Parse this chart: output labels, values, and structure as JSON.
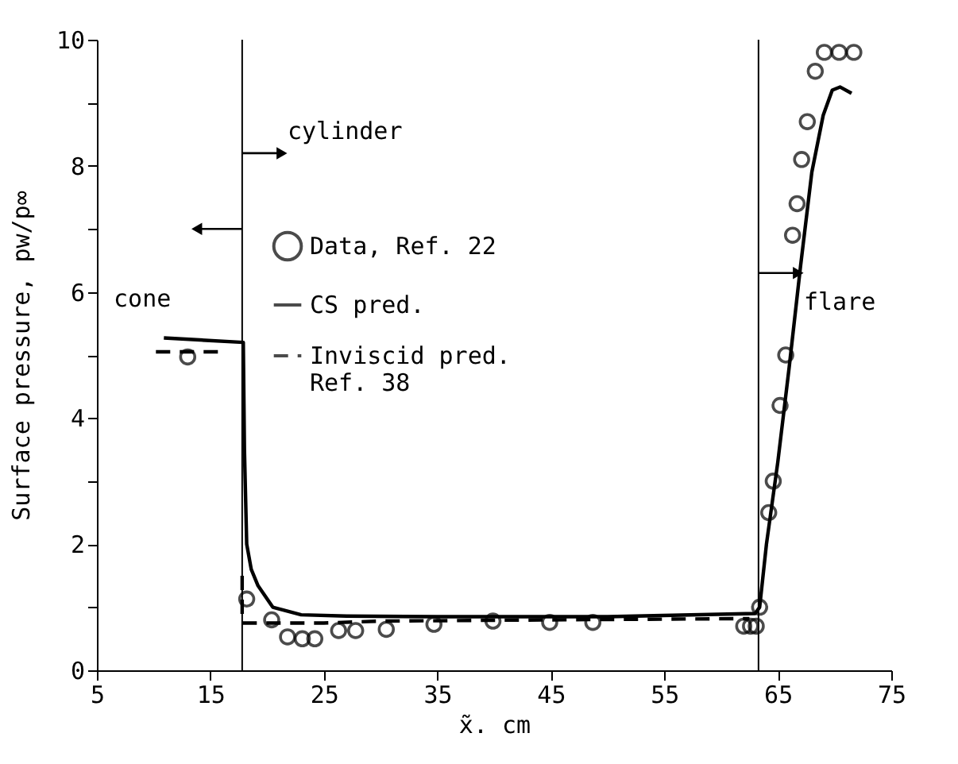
{
  "chart_data": {
    "type": "line",
    "xlabel": "x̃. cm",
    "ylabel": "Surface pressure, pw/p∞",
    "xlim": [
      5,
      75
    ],
    "xticks": [
      5,
      15,
      25,
      35,
      45,
      55,
      65,
      75
    ],
    "ylim": [
      0,
      10
    ],
    "yticks": [
      0,
      {
        "value": 1,
        "label": null
      },
      2,
      {
        "value": 3,
        "label": null
      },
      4,
      {
        "value": 5,
        "label": null
      },
      6,
      {
        "value": 7,
        "label": null
      },
      8,
      {
        "value": 9,
        "label": null
      },
      10
    ],
    "grid": false,
    "legend": "left",
    "series": [
      {
        "name": "Data, Ref. 22",
        "type": "scatter",
        "marker": "circle",
        "color": "#000000",
        "x": [
          13.0,
          18.2,
          20.4,
          21.8,
          23.1,
          24.2,
          26.3,
          27.8,
          30.5,
          34.7,
          39.9,
          44.9,
          48.7,
          62.0,
          62.6,
          63.1,
          63.4,
          64.2,
          64.6,
          65.2,
          65.7,
          66.3,
          66.7,
          67.1,
          67.6,
          68.3,
          69.1,
          70.4,
          71.7
        ],
        "values": [
          4.97,
          1.13,
          0.8,
          0.53,
          0.5,
          0.5,
          0.63,
          0.63,
          0.65,
          0.73,
          0.78,
          0.76,
          0.76,
          0.7,
          0.7,
          0.7,
          1.0,
          2.5,
          3.0,
          4.2,
          5.0,
          6.9,
          7.4,
          8.1,
          8.7,
          9.5,
          9.8,
          9.8,
          9.8
        ]
      },
      {
        "name": "CS pred.",
        "line_style": "solid",
        "color": "#000000",
        "x": [
          10.9,
          17.9,
          18.0,
          18.2,
          18.6,
          19.2,
          20.5,
          23.0,
          27.0,
          35.0,
          50.0,
          63.0,
          63.4,
          64.0,
          65.0,
          66.0,
          67.0,
          68.0,
          69.0,
          69.8,
          70.5,
          71.5
        ],
        "values": [
          5.27,
          5.2,
          3.5,
          2.0,
          1.6,
          1.34,
          1.0,
          0.88,
          0.86,
          0.85,
          0.85,
          0.9,
          1.0,
          2.0,
          3.3,
          4.8,
          6.4,
          7.9,
          8.8,
          9.2,
          9.25,
          9.15
        ]
      },
      {
        "name": "Inviscid pred.\nRef. 38",
        "line_style": "dashed",
        "color": "#000000",
        "x": [
          10.2,
          15.8,
          16.0,
          17.8,
          17.8,
          17.8,
          19.5,
          25.0,
          30.0,
          45.0,
          62.5
        ],
        "values": [
          5.05,
          5.05,
          null,
          1.5,
          1.26,
          0.75,
          0.75,
          0.75,
          0.78,
          0.8,
          0.82
        ]
      }
    ],
    "ref_lines": [
      {
        "axis": "x",
        "value": 17.8,
        "label": "cylinder",
        "color": "#000000"
      },
      {
        "axis": "x",
        "value": 63.3,
        "label": "flare",
        "color": "#000000"
      }
    ],
    "annotations": [
      "cone"
    ]
  }
}
